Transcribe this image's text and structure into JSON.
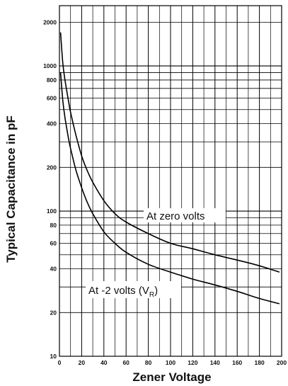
{
  "chart_data": {
    "type": "line",
    "title": "",
    "xlabel": "Zener Voltage",
    "ylabel": "Typical Capacitance in pF",
    "xlim": [
      0,
      200
    ],
    "ylim": [
      10,
      2600
    ],
    "y_scale": "log",
    "grid": true,
    "x_ticks": [
      0,
      20,
      40,
      60,
      80,
      100,
      120,
      140,
      160,
      180,
      200
    ],
    "y_ticks": [
      10,
      20,
      40,
      60,
      80,
      100,
      200,
      400,
      600,
      800,
      1000,
      2000
    ],
    "series": [
      {
        "name": "At zero volts",
        "x": [
          1,
          3,
          5,
          8,
          10,
          15,
          20,
          25,
          30,
          40,
          50,
          60,
          80,
          100,
          120,
          140,
          160,
          180,
          198
        ],
        "y": [
          1700,
          1050,
          800,
          580,
          480,
          330,
          240,
          190,
          158,
          118,
          96,
          84,
          70,
          60,
          55,
          50,
          46,
          42,
          38
        ]
      },
      {
        "name": "At -2 volts (V_R)",
        "x": [
          1,
          3,
          5,
          8,
          10,
          15,
          20,
          25,
          30,
          40,
          50,
          60,
          80,
          100,
          120,
          140,
          160,
          180,
          198
        ],
        "y": [
          900,
          580,
          440,
          320,
          270,
          190,
          145,
          115,
          96,
          72,
          60,
          52,
          43,
          38,
          34,
          31,
          28,
          25,
          23
        ]
      }
    ],
    "annotations": {
      "zero": "At zero volts",
      "minus2_prefix": "At -2 volts (V",
      "minus2_sub": "R",
      "minus2_suffix": ")"
    }
  }
}
